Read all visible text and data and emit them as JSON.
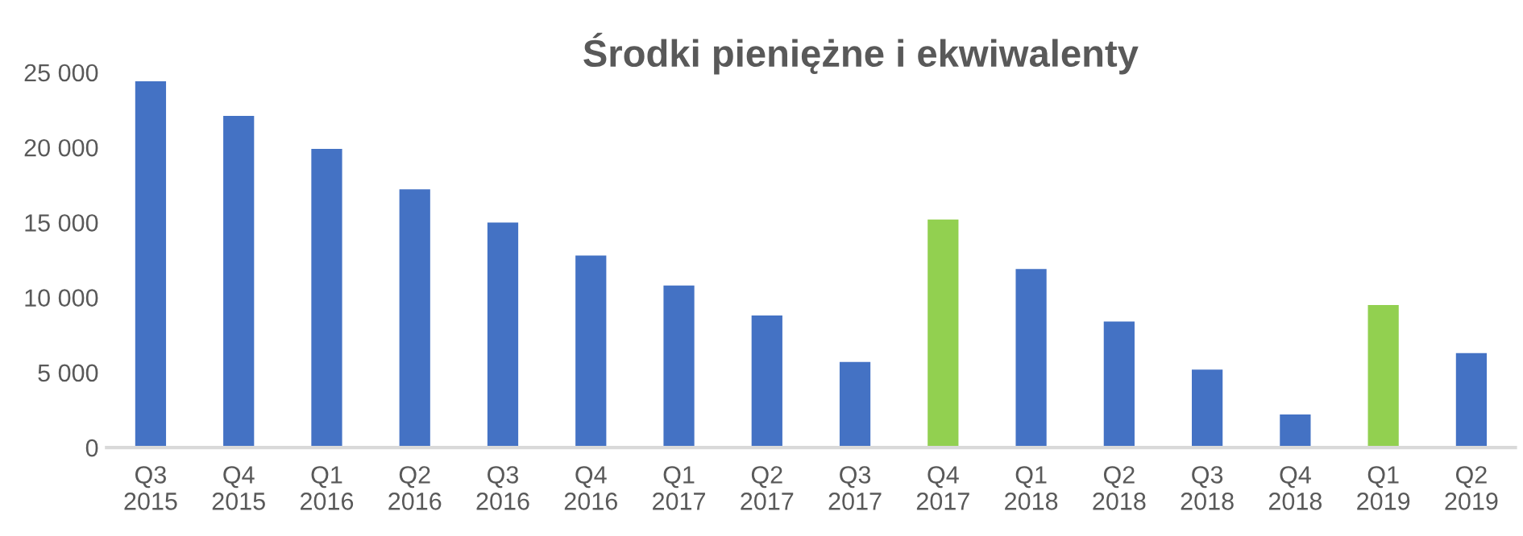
{
  "chart_data": {
    "type": "bar",
    "title": "Środki pieniężne i ekwiwalenty",
    "categories": [
      "Q3\n2015",
      "Q4\n2015",
      "Q1\n2016",
      "Q2\n2016",
      "Q3\n2016",
      "Q4\n2016",
      "Q1\n2017",
      "Q2\n2017",
      "Q3\n2017",
      "Q4\n2017",
      "Q1\n2018",
      "Q2\n2018",
      "Q3\n2018",
      "Q4\n2018",
      "Q1\n2019",
      "Q2\n2019"
    ],
    "values": [
      24400,
      22100,
      19900,
      17200,
      15000,
      12800,
      10800,
      8800,
      5700,
      15200,
      11900,
      8400,
      5200,
      2200,
      9500,
      6300
    ],
    "colors": [
      "#4472c4",
      "#4472c4",
      "#4472c4",
      "#4472c4",
      "#4472c4",
      "#4472c4",
      "#4472c4",
      "#4472c4",
      "#4472c4",
      "#92d050",
      "#4472c4",
      "#4472c4",
      "#4472c4",
      "#4472c4",
      "#92d050",
      "#4472c4"
    ],
    "ylim": [
      0,
      25000
    ],
    "yticks": [
      {
        "value": 0,
        "label": "0"
      },
      {
        "value": 5000,
        "label": "5 000"
      },
      {
        "value": 10000,
        "label": "10 000"
      },
      {
        "value": 15000,
        "label": "15 000"
      },
      {
        "value": 20000,
        "label": "20 000"
      },
      {
        "value": 25000,
        "label": "25 000"
      }
    ],
    "grid": false,
    "legend": false
  }
}
